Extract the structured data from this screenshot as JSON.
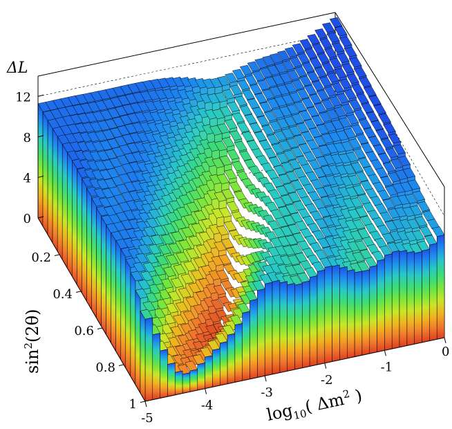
{
  "chart_data": {
    "type": "lego3d",
    "zlabel": "ΔL",
    "xlabel": {
      "base": "log",
      "sub": "10",
      "open": "( Δm",
      "sup": "2",
      "close": " )"
    },
    "ylabel": {
      "base": "sin",
      "sup": "2",
      "rest": "(2θ)"
    },
    "x_range": [
      -5,
      0
    ],
    "y_range": [
      0,
      1
    ],
    "z_range": [
      0,
      14
    ],
    "x_ticks": [
      "-5",
      "-4",
      "-3",
      "-2",
      "-1",
      "0"
    ],
    "y_ticks": [
      "0.2",
      "0.4",
      "0.6",
      "0.8",
      "1"
    ],
    "z_ticks": [
      "0",
      "4",
      "8",
      "12"
    ],
    "ridge_log_dm2": [
      -2.0,
      -2.2,
      -2.4,
      -2.55,
      -2.75,
      -3.0,
      -3.25,
      -3.55,
      -3.9,
      -4.3
    ],
    "ridge_depth": [
      6.5,
      8.0,
      9.0,
      9.8,
      10.4,
      10.2,
      10.0,
      9.6,
      9.0,
      7.8
    ],
    "back_plateau": 11.3,
    "front_wall_max": 10.0,
    "colors": [
      "#1e50e6",
      "#1e8cf0",
      "#28c8c8",
      "#3cdc78",
      "#78e63c",
      "#c8e628",
      "#f0b41e",
      "#f0782d",
      "#dc3c1e"
    ]
  }
}
